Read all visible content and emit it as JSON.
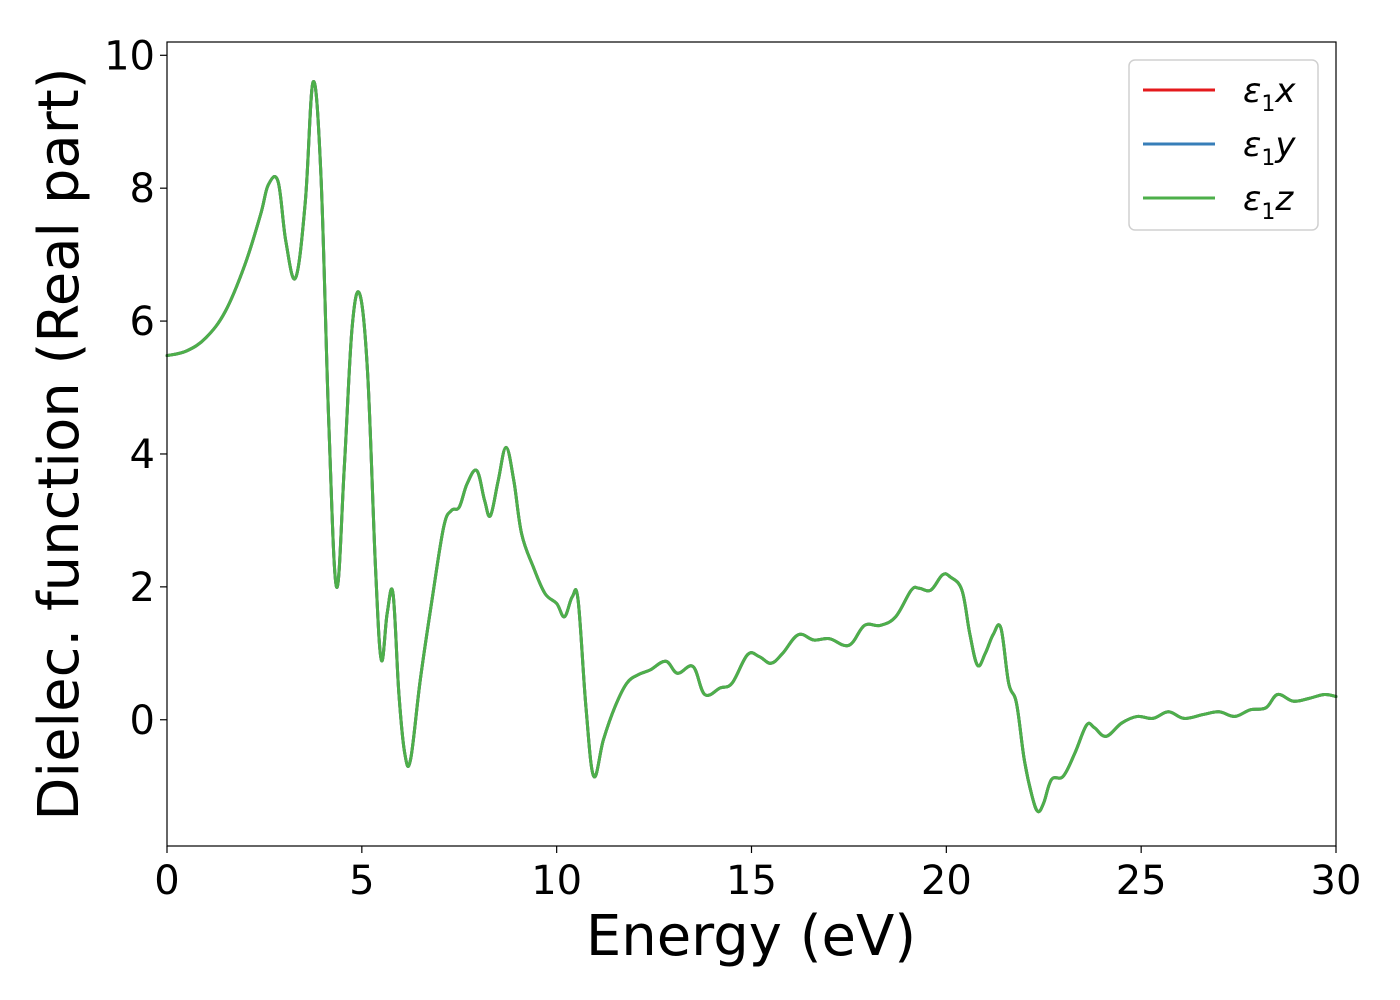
{
  "chart_data": {
    "type": "line",
    "xlabel": "Energy (eV)",
    "ylabel": "Dielec. function (Real part)",
    "xlim": [
      0,
      30
    ],
    "ylim": [
      -1.9,
      10.2
    ],
    "xticks": [
      0,
      5,
      10,
      15,
      20,
      25,
      30
    ],
    "yticks": [
      0,
      2,
      4,
      6,
      8,
      10
    ],
    "grid": false,
    "legend_position": "top-right",
    "series": [
      {
        "name": "ε₁x",
        "legend_base": "ε",
        "legend_sub": "1",
        "legend_var": "x",
        "color": "#e41a1c"
      },
      {
        "name": "ε₁y",
        "legend_base": "ε",
        "legend_sub": "1",
        "legend_var": "y",
        "color": "#377eb8"
      },
      {
        "name": "ε₁z",
        "legend_base": "ε",
        "legend_sub": "1",
        "legend_var": "z",
        "color": "#4daf4a"
      }
    ],
    "x": [
      0,
      0.5,
      1.0,
      1.5,
      2.0,
      2.4,
      2.6,
      2.85,
      3.05,
      3.3,
      3.55,
      3.75,
      3.95,
      4.15,
      4.35,
      4.55,
      4.75,
      4.95,
      5.15,
      5.35,
      5.5,
      5.65,
      5.8,
      5.95,
      6.1,
      6.25,
      6.5,
      6.8,
      7.1,
      7.3,
      7.5,
      7.7,
      7.95,
      8.15,
      8.3,
      8.5,
      8.7,
      8.9,
      9.1,
      9.4,
      9.7,
      10.0,
      10.2,
      10.4,
      10.55,
      10.75,
      10.95,
      11.2,
      11.5,
      11.8,
      12.1,
      12.4,
      12.8,
      13.1,
      13.5,
      13.8,
      14.2,
      14.5,
      14.9,
      15.2,
      15.5,
      15.8,
      16.2,
      16.6,
      17.0,
      17.5,
      17.9,
      18.3,
      18.7,
      19.1,
      19.3,
      19.6,
      19.9,
      20.1,
      20.4,
      20.6,
      20.8,
      21.0,
      21.2,
      21.4,
      21.6,
      21.8,
      22.0,
      22.2,
      22.35,
      22.5,
      22.7,
      23.0,
      23.3,
      23.6,
      23.8,
      24.1,
      24.5,
      24.9,
      25.3,
      25.7,
      26.1,
      26.6,
      27.0,
      27.4,
      27.8,
      28.2,
      28.5,
      28.9,
      29.3,
      29.7,
      30.0
    ],
    "y": [
      5.48,
      5.55,
      5.75,
      6.15,
      6.85,
      7.6,
      8.05,
      8.1,
      7.2,
      6.65,
      7.8,
      9.6,
      8.2,
      4.5,
      2.0,
      3.8,
      5.9,
      6.4,
      5.2,
      2.3,
      0.9,
      1.6,
      1.9,
      0.4,
      -0.5,
      -0.6,
      0.6,
      1.8,
      2.9,
      3.15,
      3.2,
      3.55,
      3.75,
      3.3,
      3.07,
      3.6,
      4.1,
      3.6,
      2.8,
      2.3,
      1.9,
      1.75,
      1.55,
      1.85,
      1.8,
      0.2,
      -0.85,
      -0.3,
      0.2,
      0.55,
      0.68,
      0.75,
      0.88,
      0.7,
      0.8,
      0.38,
      0.48,
      0.55,
      0.98,
      0.95,
      0.85,
      1.0,
      1.28,
      1.2,
      1.22,
      1.12,
      1.42,
      1.42,
      1.55,
      1.95,
      1.98,
      1.95,
      2.18,
      2.15,
      1.95,
      1.3,
      0.82,
      1.0,
      1.28,
      1.38,
      0.55,
      0.25,
      -0.6,
      -1.15,
      -1.38,
      -1.25,
      -0.9,
      -0.85,
      -0.5,
      -0.08,
      -0.12,
      -0.25,
      -0.05,
      0.05,
      0.02,
      0.12,
      0.02,
      0.08,
      0.12,
      0.05,
      0.15,
      0.18,
      0.38,
      0.28,
      0.32,
      0.38,
      0.35
    ]
  }
}
